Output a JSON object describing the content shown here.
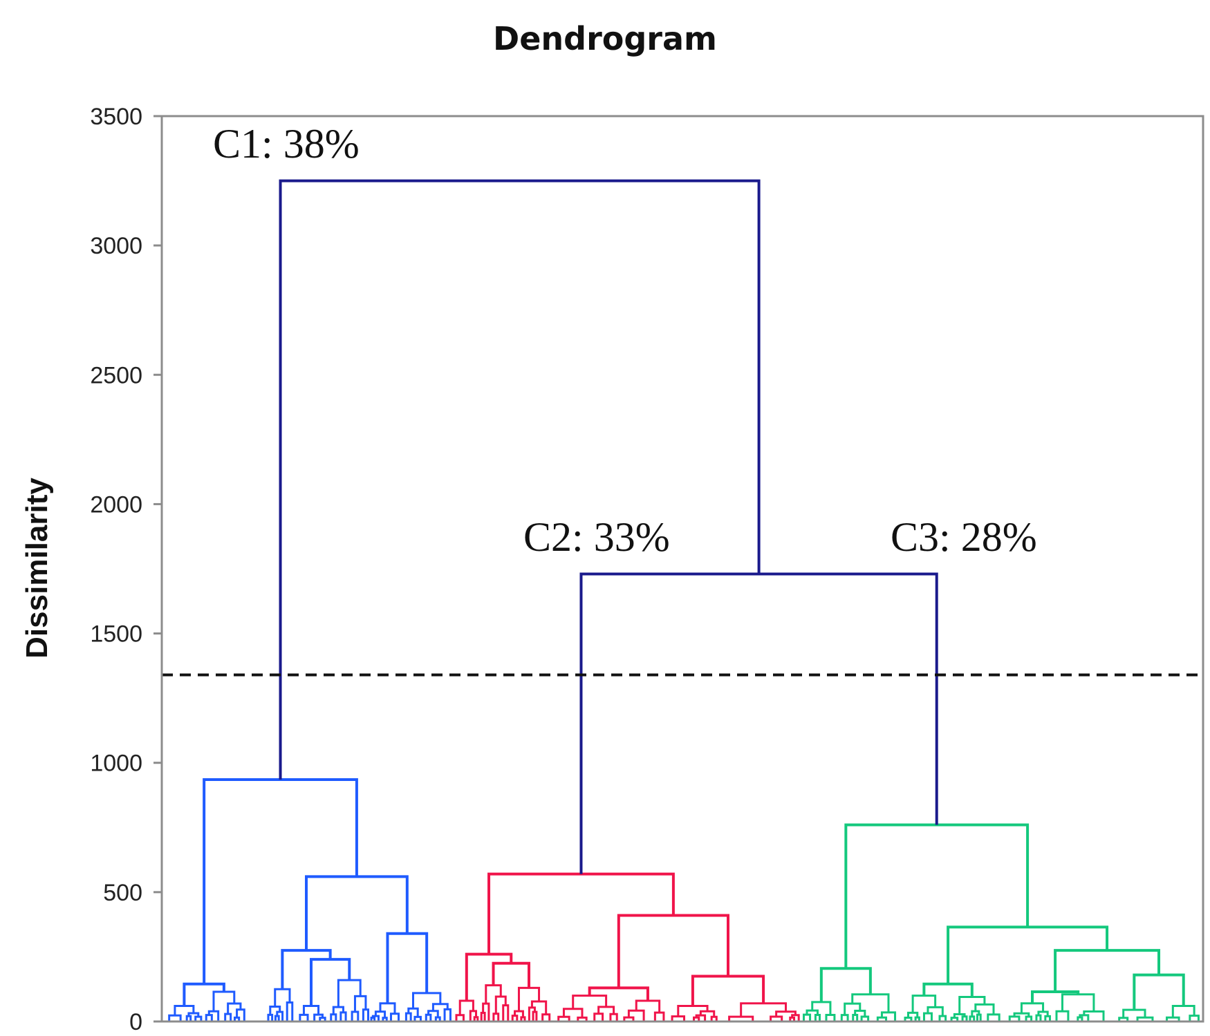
{
  "chart_data": {
    "type": "dendrogram",
    "title": "Dendrogram",
    "xlabel": "",
    "ylabel": "Dissimilarity",
    "ylim": [
      0,
      3500
    ],
    "yticks": [
      "0",
      "500",
      "1000",
      "1500",
      "2000",
      "2500",
      "3000",
      "3500"
    ],
    "cut_line": 1340,
    "colors": {
      "C1": "#1f5bff",
      "C2": "#f0144a",
      "C3": "#14c87d",
      "links": "#1a1a8c",
      "cut": "#111111"
    },
    "merges": [
      {
        "name": "root",
        "height": 3250,
        "left": "C1",
        "right": "C2+C3"
      },
      {
        "name": "C2+C3",
        "height": 1730,
        "left": "C2",
        "right": "C3"
      },
      {
        "name": "C1",
        "height": 935
      },
      {
        "name": "C2",
        "height": 570
      },
      {
        "name": "C3",
        "height": 760
      }
    ],
    "clusters": [
      {
        "id": "C1",
        "label": "C1: 38%",
        "share": 38,
        "range": [
          0,
          0.28
        ]
      },
      {
        "id": "C2",
        "label": "C2: 33%",
        "share": 33,
        "range": [
          0.28,
          0.614
        ]
      },
      {
        "id": "C3",
        "label": "C3: 28%",
        "share": 28,
        "range": [
          0.614,
          1.0
        ]
      }
    ]
  }
}
